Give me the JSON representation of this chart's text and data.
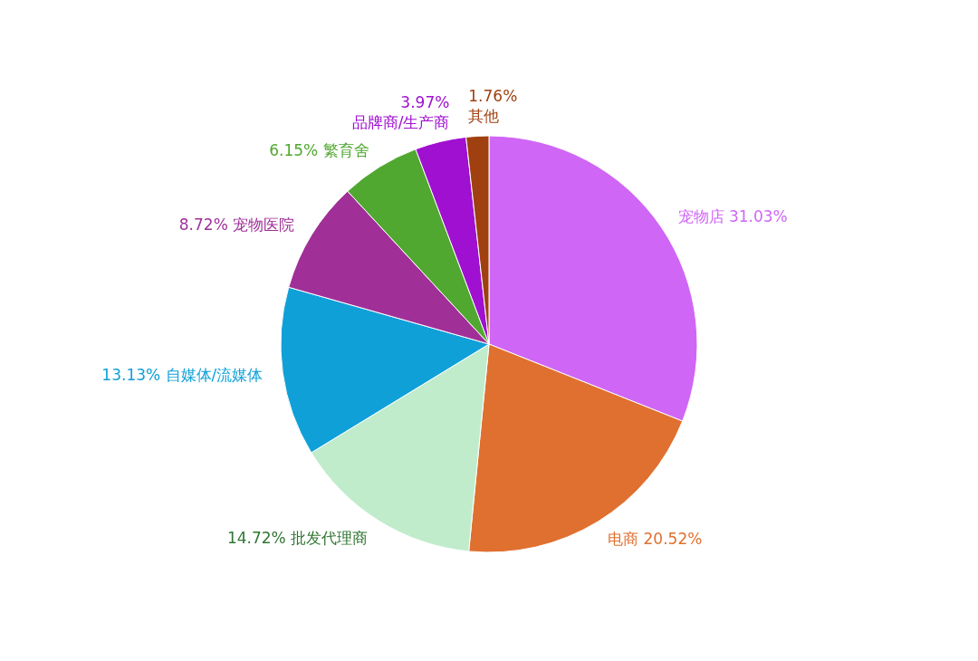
{
  "chart_data": {
    "type": "pie",
    "categories": [
      "宠物店",
      "电商",
      "批发代理商",
      "自媒体/流媒体",
      "宠物医院",
      "繁育舍",
      "品牌商/生产商",
      "其他"
    ],
    "values": [
      31.03,
      20.52,
      14.72,
      13.13,
      8.72,
      6.15,
      3.97,
      1.76
    ],
    "value_labels": [
      "31.03%",
      "20.52%",
      "14.72%",
      "13.13%",
      "8.72%",
      "6.15%",
      "3.97%",
      "1.76%"
    ],
    "colors": [
      "#d066f5",
      "#e07030",
      "#c0eccc",
      "#10a0d8",
      "#a03098",
      "#50a830",
      "#a010d0",
      "#a04010"
    ]
  }
}
